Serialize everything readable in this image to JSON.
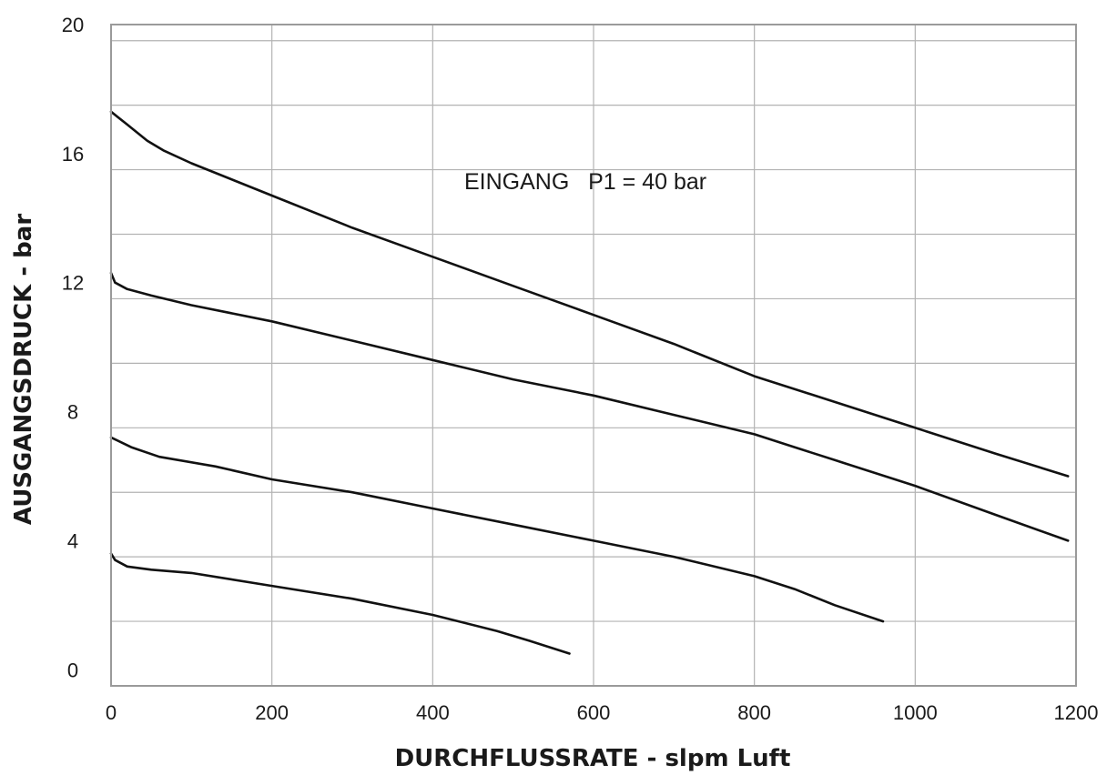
{
  "chart_data": {
    "type": "line",
    "title": "",
    "xlabel": "DURCHFLUSSRATE - slpm Luft",
    "ylabel": "AUSGANGSDRUCK - bar",
    "annotation": "EINGANG   P1 = 40 bar",
    "xlim": [
      0,
      1200
    ],
    "ylim": [
      -0.5,
      20
    ],
    "x_ticks": [
      0,
      200,
      400,
      600,
      800,
      1000,
      1200
    ],
    "x_tick_labels": [
      "0",
      "200",
      "400",
      "600",
      "800",
      "1000",
      "1200"
    ],
    "y_ticks": [
      0,
      4,
      8,
      12,
      16,
      20
    ],
    "y_tick_labels": [
      "0",
      "4",
      "8",
      "12",
      "16",
      "20"
    ],
    "x_grid": [
      0,
      200,
      400,
      600,
      800,
      1000,
      1200
    ],
    "y_grid": [
      1.5,
      3.5,
      5.5,
      7.5,
      9.5,
      11.5,
      13.5,
      15.5,
      17.5,
      19.5
    ],
    "grid": true,
    "series": [
      {
        "x": [
          0,
          20,
          45,
          65,
          100,
          200,
          300,
          400,
          500,
          600,
          700,
          800,
          900,
          1000,
          1100,
          1190
        ],
        "y": [
          17.3,
          16.9,
          16.4,
          16.1,
          15.7,
          14.7,
          13.7,
          12.8,
          11.9,
          11.0,
          10.1,
          9.1,
          8.3,
          7.5,
          6.7,
          6.0
        ]
      },
      {
        "x": [
          0,
          5,
          20,
          50,
          100,
          200,
          300,
          400,
          500,
          600,
          700,
          800,
          850,
          900,
          1000,
          1100,
          1190
        ],
        "y": [
          12.3,
          12.0,
          11.8,
          11.6,
          11.3,
          10.8,
          10.2,
          9.6,
          9.0,
          8.5,
          7.9,
          7.3,
          6.9,
          6.5,
          5.7,
          4.8,
          4.0
        ]
      },
      {
        "x": [
          0,
          25,
          60,
          130,
          200,
          300,
          400,
          500,
          600,
          700,
          800,
          850,
          900,
          960
        ],
        "y": [
          7.2,
          6.9,
          6.6,
          6.3,
          5.9,
          5.5,
          5.0,
          4.5,
          4.0,
          3.5,
          2.9,
          2.5,
          2.0,
          1.5
        ]
      },
      {
        "x": [
          0,
          5,
          20,
          50,
          100,
          200,
          300,
          400,
          480,
          520,
          570
        ],
        "y": [
          3.6,
          3.4,
          3.2,
          3.1,
          3.0,
          2.6,
          2.2,
          1.7,
          1.2,
          0.9,
          0.5
        ]
      }
    ]
  }
}
